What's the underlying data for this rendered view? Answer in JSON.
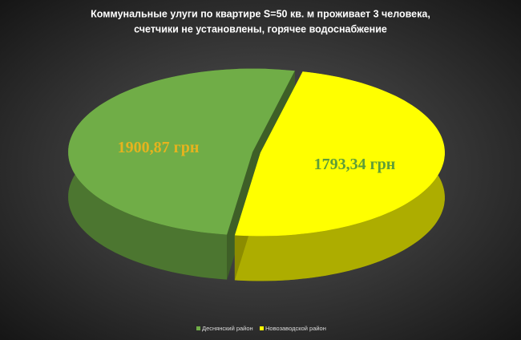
{
  "chart_data": {
    "type": "pie",
    "title": [
      "Коммунальные улуги по квартире S=50 кв. м проживает 3 человека,",
      "счетчики не установлены, горячее водоснабжение"
    ],
    "categories": [
      "Деснянский район",
      "Новозаводской район"
    ],
    "values": [
      1900.87,
      1793.34
    ],
    "value_labels": [
      "1900,87 грн",
      "1793,34 грн"
    ],
    "colors": [
      "#70ad47",
      "#ffff00"
    ],
    "label_colors": [
      "#e6b31e",
      "#5f9e38"
    ],
    "legend": "bottom"
  }
}
